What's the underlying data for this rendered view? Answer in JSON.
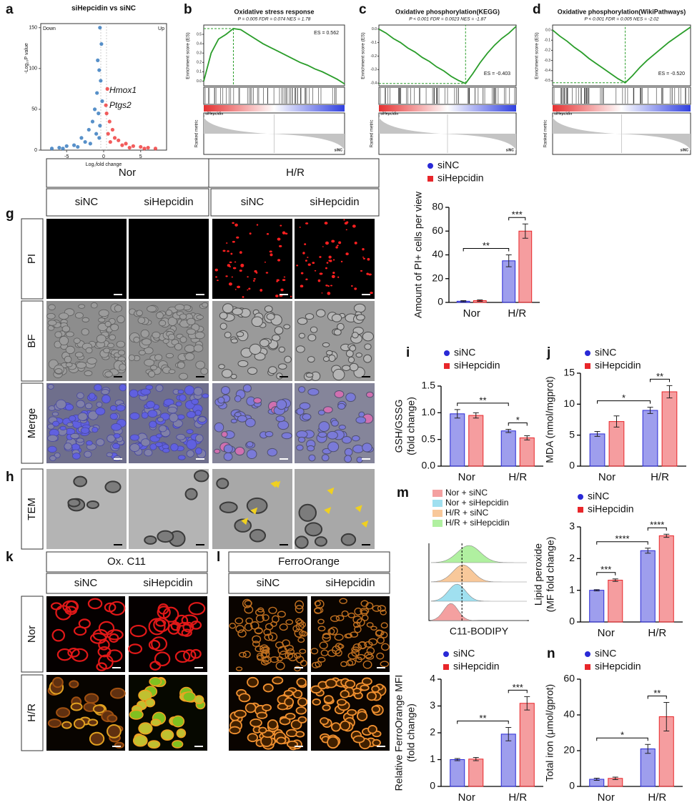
{
  "chart_data": [
    {
      "type": "scatter",
      "panel": "a",
      "title": "siHepcidin vs siNC",
      "x_label": "Log₂fold change",
      "y_label": "-Log₁₀P value",
      "labels": [
        "Down",
        "Up"
      ],
      "annotations": [
        "Hmox1",
        "Ptgs2"
      ],
      "colors": [
        "#3a7dbf",
        "#f04040"
      ],
      "x": [
        -0.5,
        -0.3,
        -0.8,
        -0.6,
        -0.4,
        -0.9,
        -0.2,
        -1.2,
        -0.7,
        -1.5,
        -2,
        -0.5,
        -3,
        -1,
        -2.5,
        -4,
        -5,
        -6,
        -7,
        -3.5,
        -1.8,
        -0.6,
        -5.5,
        0.5,
        0.3,
        0.4,
        0.8,
        1.2,
        0.6,
        2,
        3,
        1.5,
        4,
        5,
        6,
        7,
        2.5,
        0.9,
        3.5,
        5.5
      ],
      "y": [
        150,
        130,
        110,
        98,
        85,
        70,
        60,
        50,
        45,
        35,
        25,
        30,
        15,
        20,
        10,
        6,
        5,
        3,
        2,
        4,
        8,
        15,
        2,
        75,
        55,
        45,
        35,
        25,
        20,
        12,
        8,
        15,
        5,
        4,
        3,
        2,
        6,
        10,
        3,
        2
      ],
      "xlim": [
        -8.5,
        8.5
      ],
      "ylim": [
        0,
        155
      ],
      "xticks": [
        -5,
        0,
        5
      ],
      "yticks": [
        0,
        50,
        100,
        150
      ]
    },
    {
      "type": "gsea",
      "panel": "b",
      "title": "Oxidative stress response",
      "subtitle": "P = 0.005  FDR = 0.074  NES = 1.78",
      "es_label": "ES = 0.562",
      "y_label": "Enrichment score (ES)",
      "metric_label": "Ranked metric",
      "groups": [
        "siHepcidin",
        "siNC"
      ],
      "color": "#2a9d2a",
      "values": [
        0,
        0.3,
        0.45,
        0.5,
        0.562,
        0.55,
        0.5,
        0.45,
        0.4,
        0.36,
        0.32,
        0.28,
        0.24,
        0.2,
        0.17,
        0.13,
        0.1,
        0.06,
        0.02,
        -0.03
      ],
      "ylim": [
        -0.05,
        0.6
      ],
      "yticks": [
        {
          "value": 0,
          "label": "0.0"
        },
        0.1,
        0.2,
        0.3,
        0.4,
        0.5
      ]
    },
    {
      "type": "gsea",
      "panel": "c",
      "title": "Oxidative phosphorylation(KEGG)",
      "subtitle": "P < 0.001  FDR = 0.0023  NES = -1.87",
      "es_label": "ES = -0.403",
      "y_label": "Enrichment score (ES)",
      "metric_label": "Ranked metric",
      "groups": [
        "siHepcidin",
        "siNC"
      ],
      "color": "#2a9d2a",
      "values": [
        0,
        -0.03,
        -0.07,
        -0.1,
        -0.14,
        -0.17,
        -0.21,
        -0.24,
        -0.28,
        -0.31,
        -0.35,
        -0.38,
        -0.403,
        -0.33,
        -0.25,
        -0.18,
        -0.12,
        -0.07,
        -0.03,
        0.02
      ],
      "ylim": [
        -0.42,
        0.03
      ],
      "yticks": [
        {
          "value": 0,
          "label": "0.0"
        },
        -0.1,
        -0.2,
        -0.3,
        -0.4
      ]
    },
    {
      "type": "gsea",
      "panel": "d",
      "title": "Oxidative phosphorylation(WikiPathways)",
      "subtitle": "P < 0.001  FDR = 0.005  NES = -2.02",
      "es_label": "ES = -0.520",
      "y_label": "Enrichment score (ES)",
      "metric_label": "Ranked metric",
      "groups": [
        "siHepcidin",
        "siNC"
      ],
      "color": "#2a9d2a",
      "values": [
        0,
        -0.06,
        -0.11,
        -0.17,
        -0.22,
        -0.28,
        -0.33,
        -0.38,
        -0.43,
        -0.48,
        -0.52,
        -0.45,
        -0.37,
        -0.3,
        -0.24,
        -0.18,
        -0.12,
        -0.07,
        -0.02,
        0.03
      ],
      "ylim": [
        -0.55,
        0.05
      ],
      "yticks": [
        {
          "value": 0,
          "label": "0.0"
        },
        -0.1,
        -0.2,
        -0.3,
        -0.4,
        -0.5
      ]
    },
    {
      "type": "bar",
      "y_label": [
        "Amount of PI+ cells per view"
      ],
      "categories": [
        "Nor",
        "H/R"
      ],
      "series": [
        {
          "name": "siNC",
          "color": "#2929d6",
          "marker": "circle",
          "values": [
            1,
            35
          ],
          "errors": [
            0.5,
            5
          ]
        },
        {
          "name": "siHepcidin",
          "color": "#e8262a",
          "marker": "square",
          "values": [
            1.5,
            60
          ],
          "errors": [
            0.6,
            6
          ]
        }
      ],
      "ylim": [
        0,
        80
      ],
      "yticks": [
        0,
        20,
        40,
        60,
        80
      ],
      "annotations": [
        {
          "text": "**",
          "bars": [
            [
              0,
              0
            ],
            [
              1,
              0
            ]
          ]
        },
        {
          "text": "***",
          "bars": [
            [
              1,
              0
            ],
            [
              1,
              1
            ]
          ]
        }
      ]
    },
    {
      "type": "bar",
      "panel": "i",
      "y_label": [
        "GSH/GSSG",
        "(fold change)"
      ],
      "categories": [
        "Nor",
        "H/R"
      ],
      "series": [
        {
          "name": "siNC",
          "color": "#2929d6",
          "marker": "circle",
          "values": [
            0.98,
            0.66
          ],
          "errors": [
            0.08,
            0.03
          ]
        },
        {
          "name": "siHepcidin",
          "color": "#e8262a",
          "marker": "square",
          "values": [
            0.95,
            0.53
          ],
          "errors": [
            0.05,
            0.04
          ]
        }
      ],
      "ylim": [
        0,
        1.5
      ],
      "yticks": [
        {
          "value": 0,
          "label": "0.0"
        },
        0.5,
        {
          "value": 1,
          "label": "1.0"
        },
        1.5
      ],
      "annotations": [
        {
          "text": "**",
          "bars": [
            [
              0,
              0
            ],
            [
              1,
              0
            ]
          ]
        },
        {
          "text": "*",
          "bars": [
            [
              1,
              0
            ],
            [
              1,
              1
            ]
          ]
        }
      ]
    },
    {
      "type": "bar",
      "panel": "j",
      "y_label": [
        "MDA (nmol/mgprot)"
      ],
      "categories": [
        "Nor",
        "H/R"
      ],
      "series": [
        {
          "name": "siNC",
          "color": "#2929d6",
          "marker": "circle",
          "values": [
            5.2,
            9
          ],
          "errors": [
            0.4,
            0.5
          ]
        },
        {
          "name": "siHepcidin",
          "color": "#e8262a",
          "marker": "square",
          "values": [
            7.2,
            12
          ],
          "errors": [
            0.9,
            1
          ]
        }
      ],
      "ylim": [
        0,
        15
      ],
      "yticks": [
        0,
        5,
        10,
        15
      ],
      "annotations": [
        {
          "text": "*",
          "bars": [
            [
              0,
              0
            ],
            [
              1,
              0
            ]
          ]
        },
        {
          "text": "**",
          "bars": [
            [
              1,
              0
            ],
            [
              1,
              1
            ]
          ]
        }
      ]
    },
    {
      "type": "density",
      "panel": "m",
      "x_label": "C11-BODIPY",
      "series": [
        {
          "name": "Nor + siNC",
          "color": "#f4a0a0"
        },
        {
          "name": "Nor + siHepcidin",
          "color": "#a0e0f0"
        },
        {
          "name": "H/R + siNC",
          "color": "#f8c89a"
        },
        {
          "name": "H/R + siHepcidin",
          "color": "#b0f0a0"
        }
      ]
    },
    {
      "type": "bar",
      "y_label": [
        "Lipid peroxide",
        "(MF fold change)"
      ],
      "categories": [
        "Nor",
        "H/R"
      ],
      "series": [
        {
          "name": "siNC",
          "color": "#2929d6",
          "marker": "circle",
          "values": [
            1,
            2.25
          ],
          "errors": [
            0.02,
            0.08
          ]
        },
        {
          "name": "siHepcidin",
          "color": "#e8262a",
          "marker": "square",
          "values": [
            1.32,
            2.72
          ],
          "errors": [
            0.04,
            0.05
          ]
        }
      ],
      "ylim": [
        0,
        3
      ],
      "yticks": [
        0,
        1,
        2,
        3
      ],
      "annotations": [
        {
          "text": "***",
          "bars": [
            [
              0,
              0
            ],
            [
              0,
              1
            ]
          ]
        },
        {
          "text": "****",
          "bars": [
            [
              0,
              0
            ],
            [
              1,
              0
            ]
          ]
        },
        {
          "text": "****",
          "bars": [
            [
              1,
              0
            ],
            [
              1,
              1
            ]
          ]
        }
      ]
    },
    {
      "type": "bar",
      "y_label": [
        "Relative FerroOrange MFI",
        "(fold change)"
      ],
      "categories": [
        "Nor",
        "H/R"
      ],
      "series": [
        {
          "name": "siNC",
          "color": "#2929d6",
          "marker": "circle",
          "values": [
            1,
            1.95
          ],
          "errors": [
            0.04,
            0.25
          ]
        },
        {
          "name": "siHepcidin",
          "color": "#e8262a",
          "marker": "square",
          "values": [
            1.02,
            3.1
          ],
          "errors": [
            0.06,
            0.25
          ]
        }
      ],
      "ylim": [
        0,
        4
      ],
      "yticks": [
        0,
        1,
        2,
        3,
        4
      ],
      "annotations": [
        {
          "text": "**",
          "bars": [
            [
              0,
              0
            ],
            [
              1,
              0
            ]
          ]
        },
        {
          "text": "***",
          "bars": [
            [
              1,
              0
            ],
            [
              1,
              1
            ]
          ]
        }
      ]
    },
    {
      "type": "bar",
      "panel": "n",
      "y_label": [
        "Total iron (μmol/gprot)"
      ],
      "categories": [
        "Nor",
        "H/R"
      ],
      "series": [
        {
          "name": "siNC",
          "color": "#2929d6",
          "marker": "circle",
          "values": [
            4,
            21
          ],
          "errors": [
            0.6,
            2.5
          ]
        },
        {
          "name": "siHepcidin",
          "color": "#e8262a",
          "marker": "square",
          "values": [
            4.5,
            39
          ],
          "errors": [
            0.7,
            8
          ]
        }
      ],
      "ylim": [
        0,
        60
      ],
      "yticks": [
        0,
        20,
        40,
        60
      ],
      "annotations": [
        {
          "text": "*",
          "bars": [
            [
              0,
              0
            ],
            [
              1,
              0
            ]
          ]
        },
        {
          "text": "**",
          "bars": [
            [
              1,
              0
            ],
            [
              1,
              1
            ]
          ]
        }
      ]
    }
  ],
  "images": {
    "g": {
      "panel": "g",
      "groups": [
        "Nor",
        "H/R"
      ],
      "columns": [
        "siNC",
        "siHepcidin",
        "siNC",
        "siHepcidin"
      ],
      "rows": [
        "PI",
        "BF",
        "Merge"
      ]
    },
    "h": {
      "panel": "h",
      "rows": [
        "TEM"
      ]
    },
    "k": {
      "panel": "k",
      "title": "Ox. C11",
      "columns": [
        "siNC",
        "siHepcidin"
      ],
      "rows": [
        "Nor",
        "H/R"
      ]
    },
    "l": {
      "panel": "l",
      "title": "FerroOrange",
      "columns": [
        "siNC",
        "siHepcidin"
      ]
    }
  }
}
